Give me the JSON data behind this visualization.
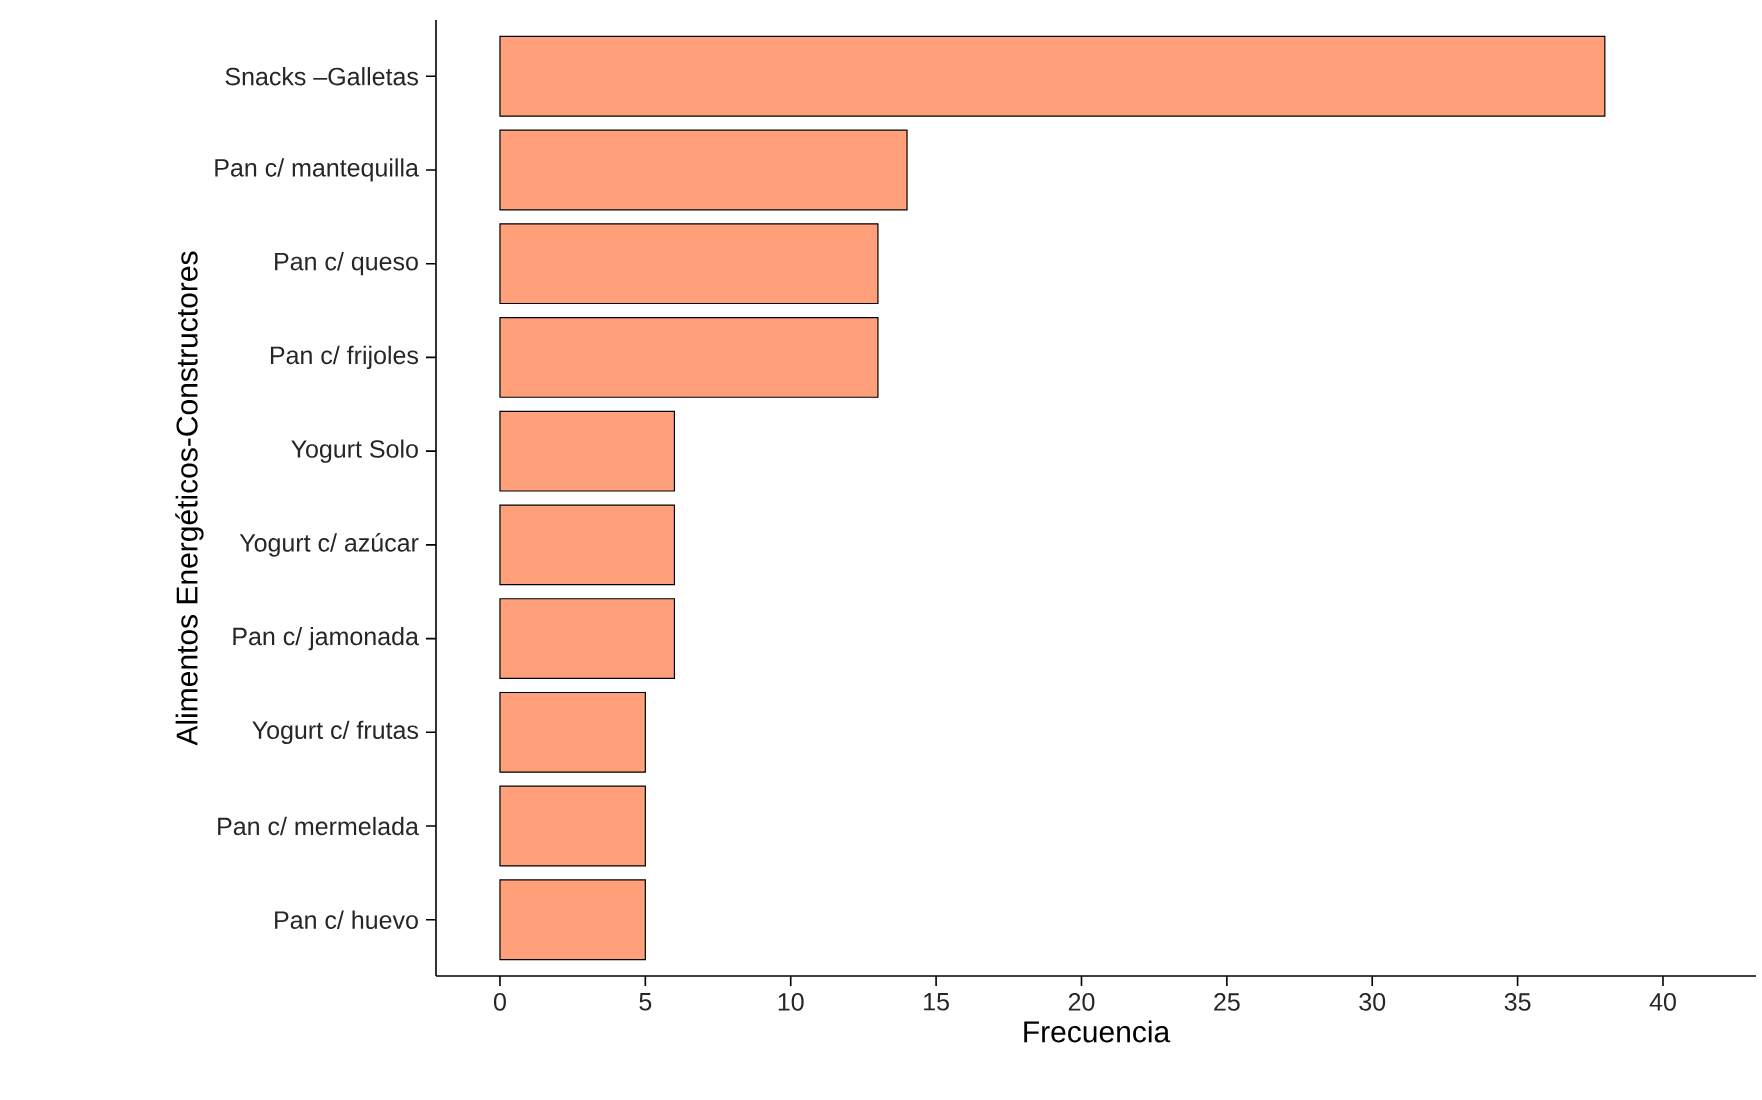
{
  "chart_data": {
    "type": "bar",
    "orientation": "horizontal",
    "xlabel": "Frecuencia",
    "ylabel": "Alimentos Energéticos-Constructores",
    "categories": [
      "Snacks –Galletas",
      "Pan c/ mantequilla",
      "Pan c/ queso",
      "Pan c/ frijoles",
      "Yogurt Solo",
      "Yogurt c/ azúcar",
      "Pan c/ jamonada",
      "Yogurt c/ frutas",
      "Pan c/ mermelada",
      "Pan c/ huevo"
    ],
    "values": [
      38,
      14,
      13,
      13,
      6,
      6,
      6,
      5,
      5,
      5
    ],
    "color": "#ffa07a",
    "xlim": [
      -2.2,
      43.2
    ],
    "xticks": [
      0,
      5,
      10,
      15,
      20,
      25,
      30,
      35,
      40
    ],
    "grid": false
  }
}
